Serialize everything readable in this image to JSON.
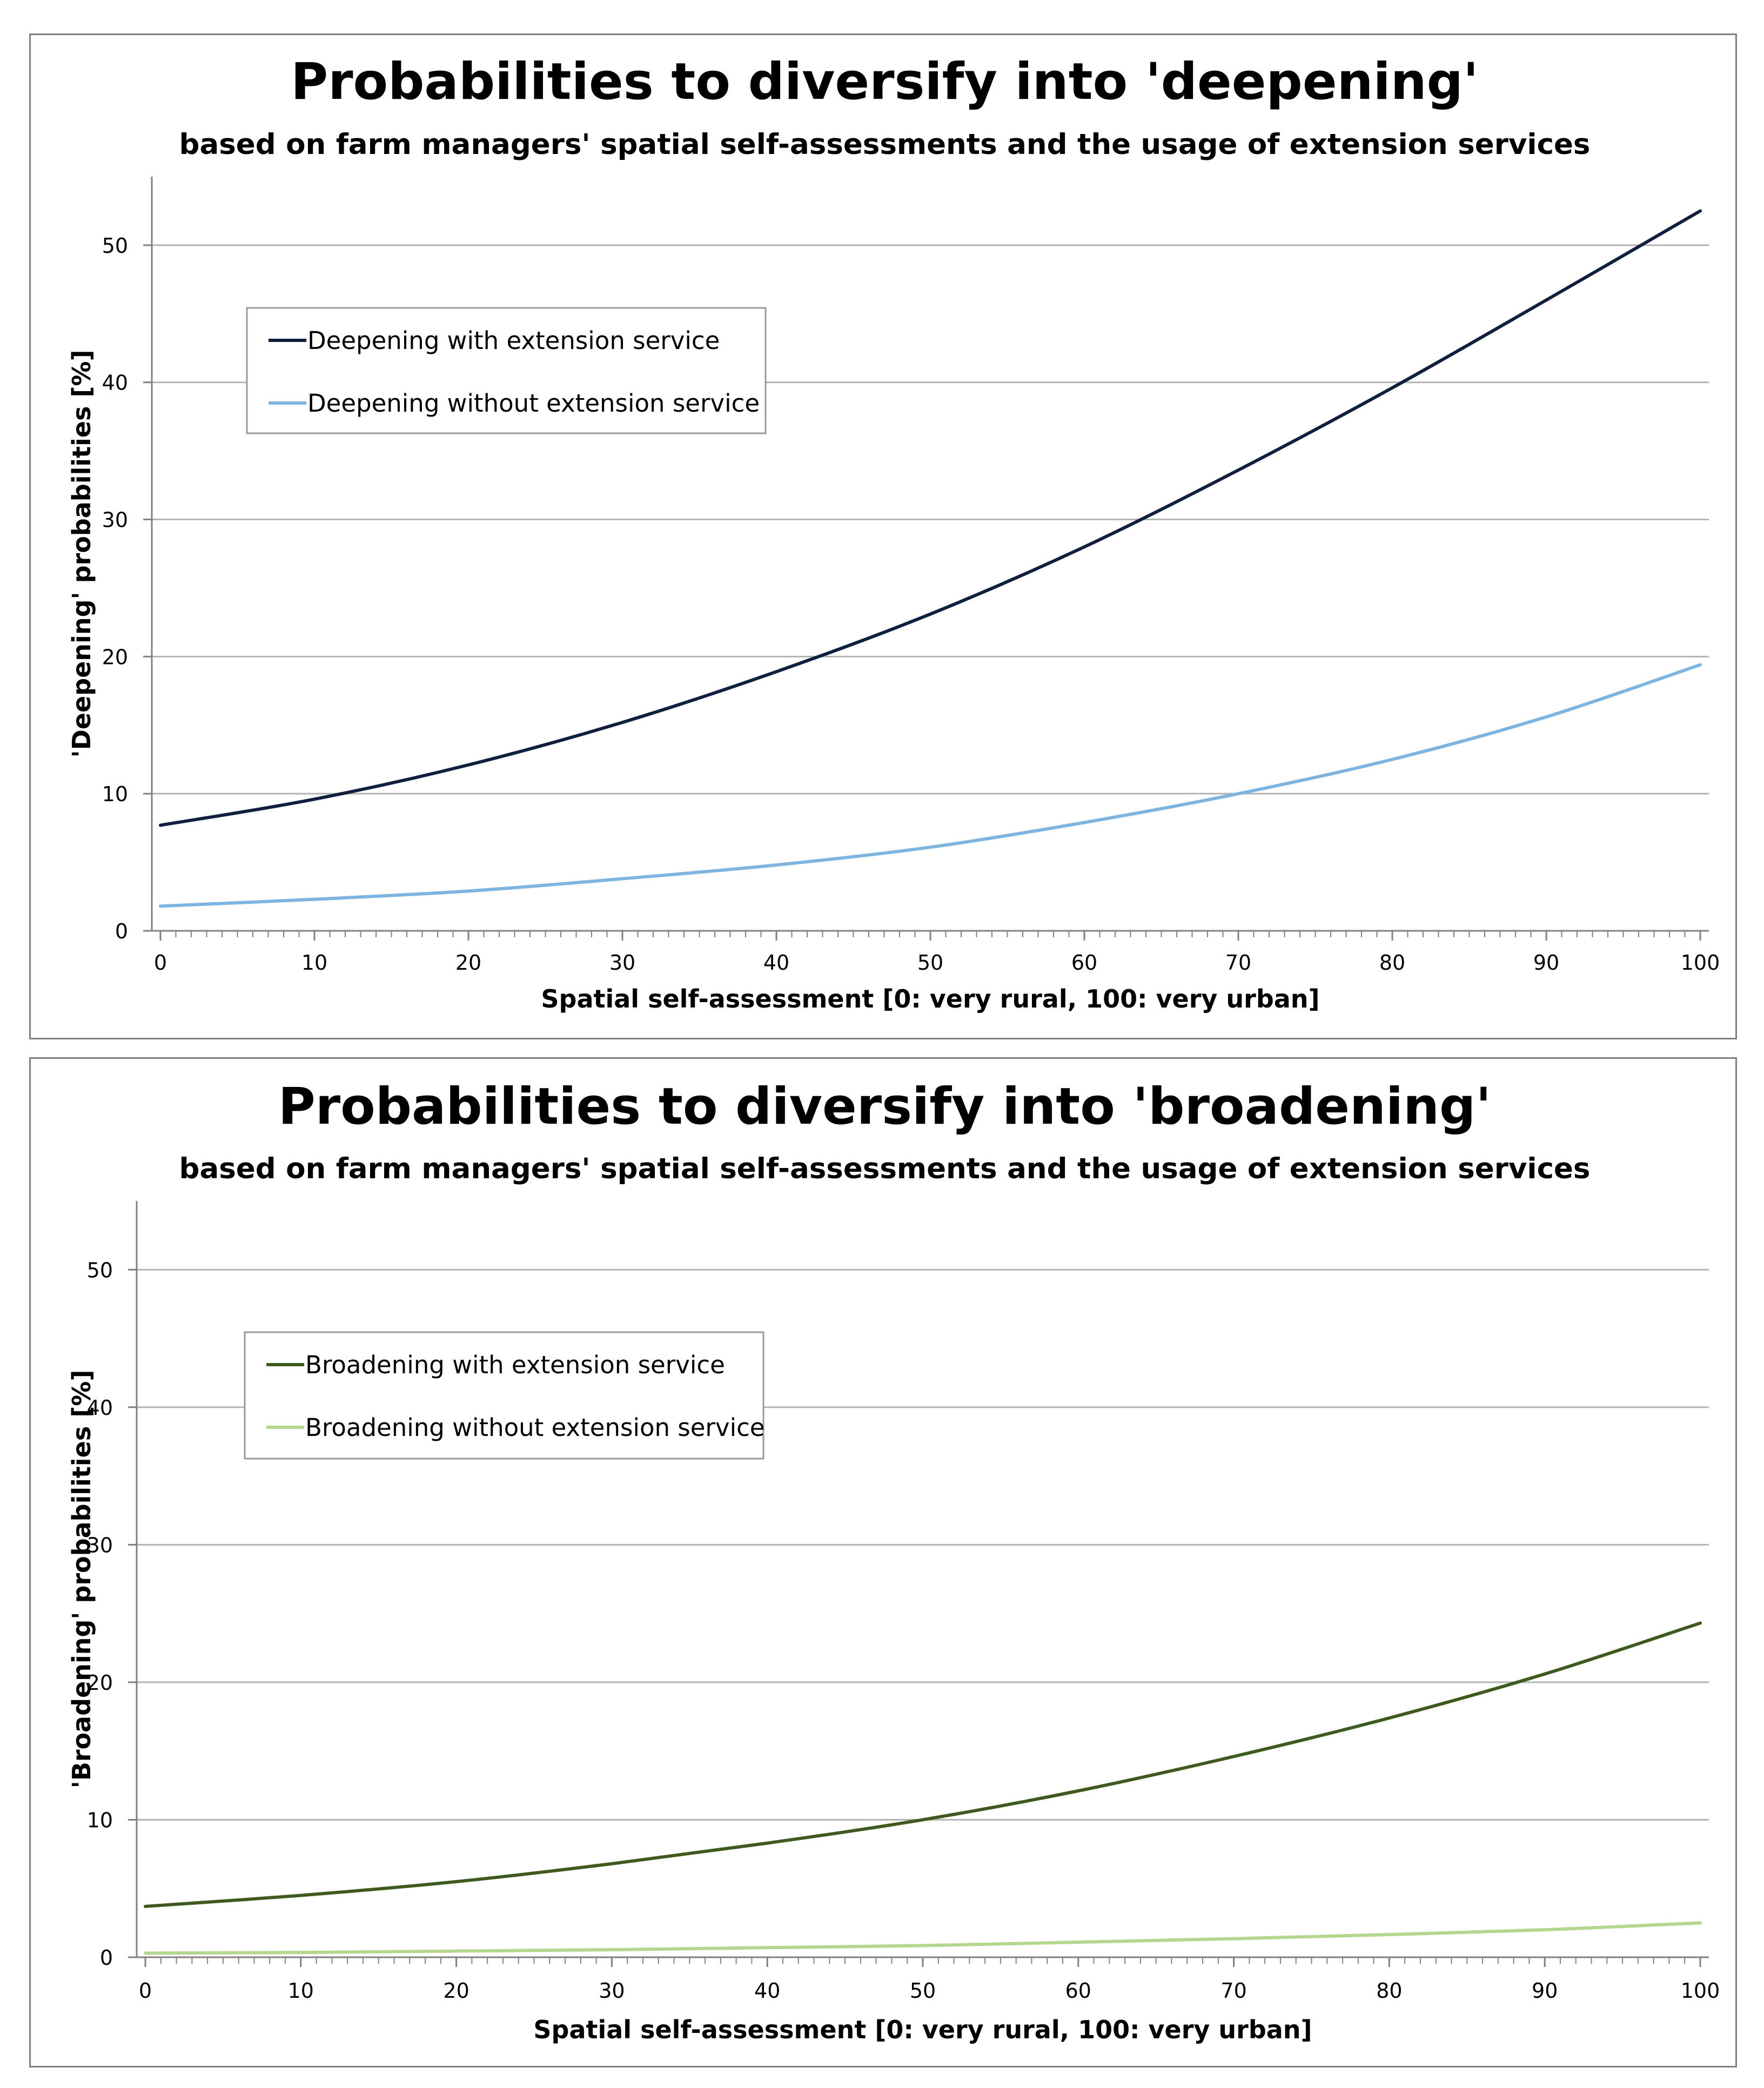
{
  "chart_data": [
    {
      "type": "line",
      "title": "Probabilities to diversify into 'deepening'",
      "subtitle": "based on farm managers' spatial self-assessments and the usage of extension services",
      "xlabel": "Spatial self-assessment [0: very rural, 100: very urban]",
      "ylabel": "'Deepening' probabilities [%]",
      "xlim": [
        0,
        100
      ],
      "ylim": [
        0,
        55
      ],
      "x_ticks": [
        0,
        10,
        20,
        30,
        40,
        50,
        60,
        70,
        80,
        90,
        100
      ],
      "y_ticks": [
        0,
        10,
        20,
        30,
        40,
        50
      ],
      "grid": true,
      "legend_position": "upper-left",
      "x": [
        0,
        10,
        20,
        30,
        40,
        50,
        60,
        70,
        80,
        90,
        100
      ],
      "series": [
        {
          "name": "Deepening with extension service",
          "color": "#0f1f3d",
          "values": [
            7.7,
            9.6,
            12.1,
            15.2,
            18.9,
            23.1,
            28.0,
            33.6,
            39.6,
            46.0,
            52.5
          ]
        },
        {
          "name": "Deepening without extension service",
          "color": "#7eb4e0",
          "values": [
            1.8,
            2.3,
            2.9,
            3.8,
            4.8,
            6.1,
            7.9,
            10.0,
            12.5,
            15.6,
            19.4
          ]
        }
      ]
    },
    {
      "type": "line",
      "title": "Probabilities to diversify into 'broadening'",
      "subtitle": "based on farm managers' spatial self-assessments and the usage of extension services",
      "xlabel": "Spatial self-assessment [0: very rural, 100: very urban]",
      "ylabel": "'Broadening' probabilities [%]",
      "xlim": [
        0,
        100
      ],
      "ylim": [
        0,
        55
      ],
      "x_ticks": [
        0,
        10,
        20,
        30,
        40,
        50,
        60,
        70,
        80,
        90,
        100
      ],
      "y_ticks": [
        0,
        10,
        20,
        30,
        40,
        50
      ],
      "grid": true,
      "legend_position": "upper-left",
      "x": [
        0,
        10,
        20,
        30,
        40,
        50,
        60,
        70,
        80,
        90,
        100
      ],
      "series": [
        {
          "name": "Broadening with extension service",
          "color": "#3e5a1e",
          "values": [
            3.7,
            4.5,
            5.5,
            6.8,
            8.3,
            10.0,
            12.1,
            14.6,
            17.4,
            20.6,
            24.3
          ]
        },
        {
          "name": "Broadening without extension service",
          "color": "#b5d68e",
          "values": [
            0.3,
            0.35,
            0.45,
            0.55,
            0.7,
            0.85,
            1.1,
            1.35,
            1.65,
            2.0,
            2.5
          ]
        }
      ]
    }
  ]
}
